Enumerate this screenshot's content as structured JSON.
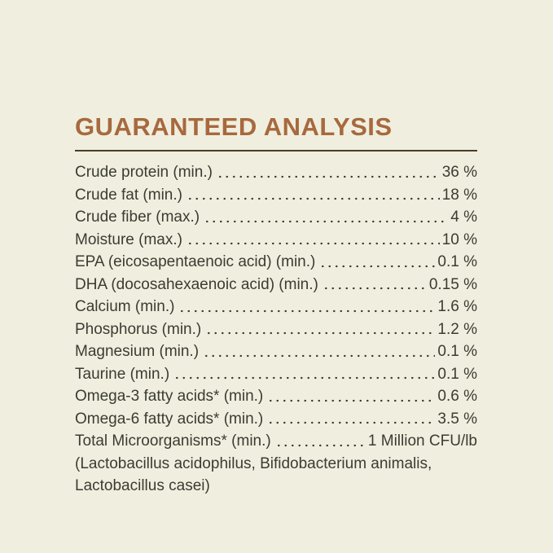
{
  "page": {
    "background_color": "#F0EFDF"
  },
  "header": {
    "title": "GUARANTEED ANALYSIS",
    "title_color": "#A7693E",
    "divider_color": "#4A3C28"
  },
  "analysis": {
    "text_color": "#3B3B33",
    "rows": [
      {
        "label": "Crude protein (min.)",
        "value": "36 %"
      },
      {
        "label": "Crude fat (min.)",
        "value": "18 %"
      },
      {
        "label": "Crude fiber (max.)",
        "value": "4 %"
      },
      {
        "label": "Moisture (max.)",
        "value": "10 %"
      },
      {
        "label": "EPA (eicosapentaenoic acid) (min.)",
        "value": "0.1 %"
      },
      {
        "label": "DHA (docosahexaenoic acid) (min.)",
        "value": "0.15 %"
      },
      {
        "label": "Calcium (min.)",
        "value": "1.6 %"
      },
      {
        "label": "Phosphorus (min.)",
        "value": "1.2 %"
      },
      {
        "label": "Magnesium (min.)",
        "value": "0.1 %"
      },
      {
        "label": "Taurine (min.)",
        "value": "0.1 %"
      },
      {
        "label": "Omega-3 fatty acids* (min.)",
        "value": "0.6 %"
      },
      {
        "label": "Omega-6 fatty acids* (min.)",
        "value": "3.5 %"
      },
      {
        "label": "Total Microorganisms* (min.)",
        "value": "1 Million CFU/lb"
      }
    ],
    "footnote_lines": [
      "(Lactobacillus acidophilus, Bifidobacterium animalis,",
      "Lactobacillus casei)"
    ]
  }
}
